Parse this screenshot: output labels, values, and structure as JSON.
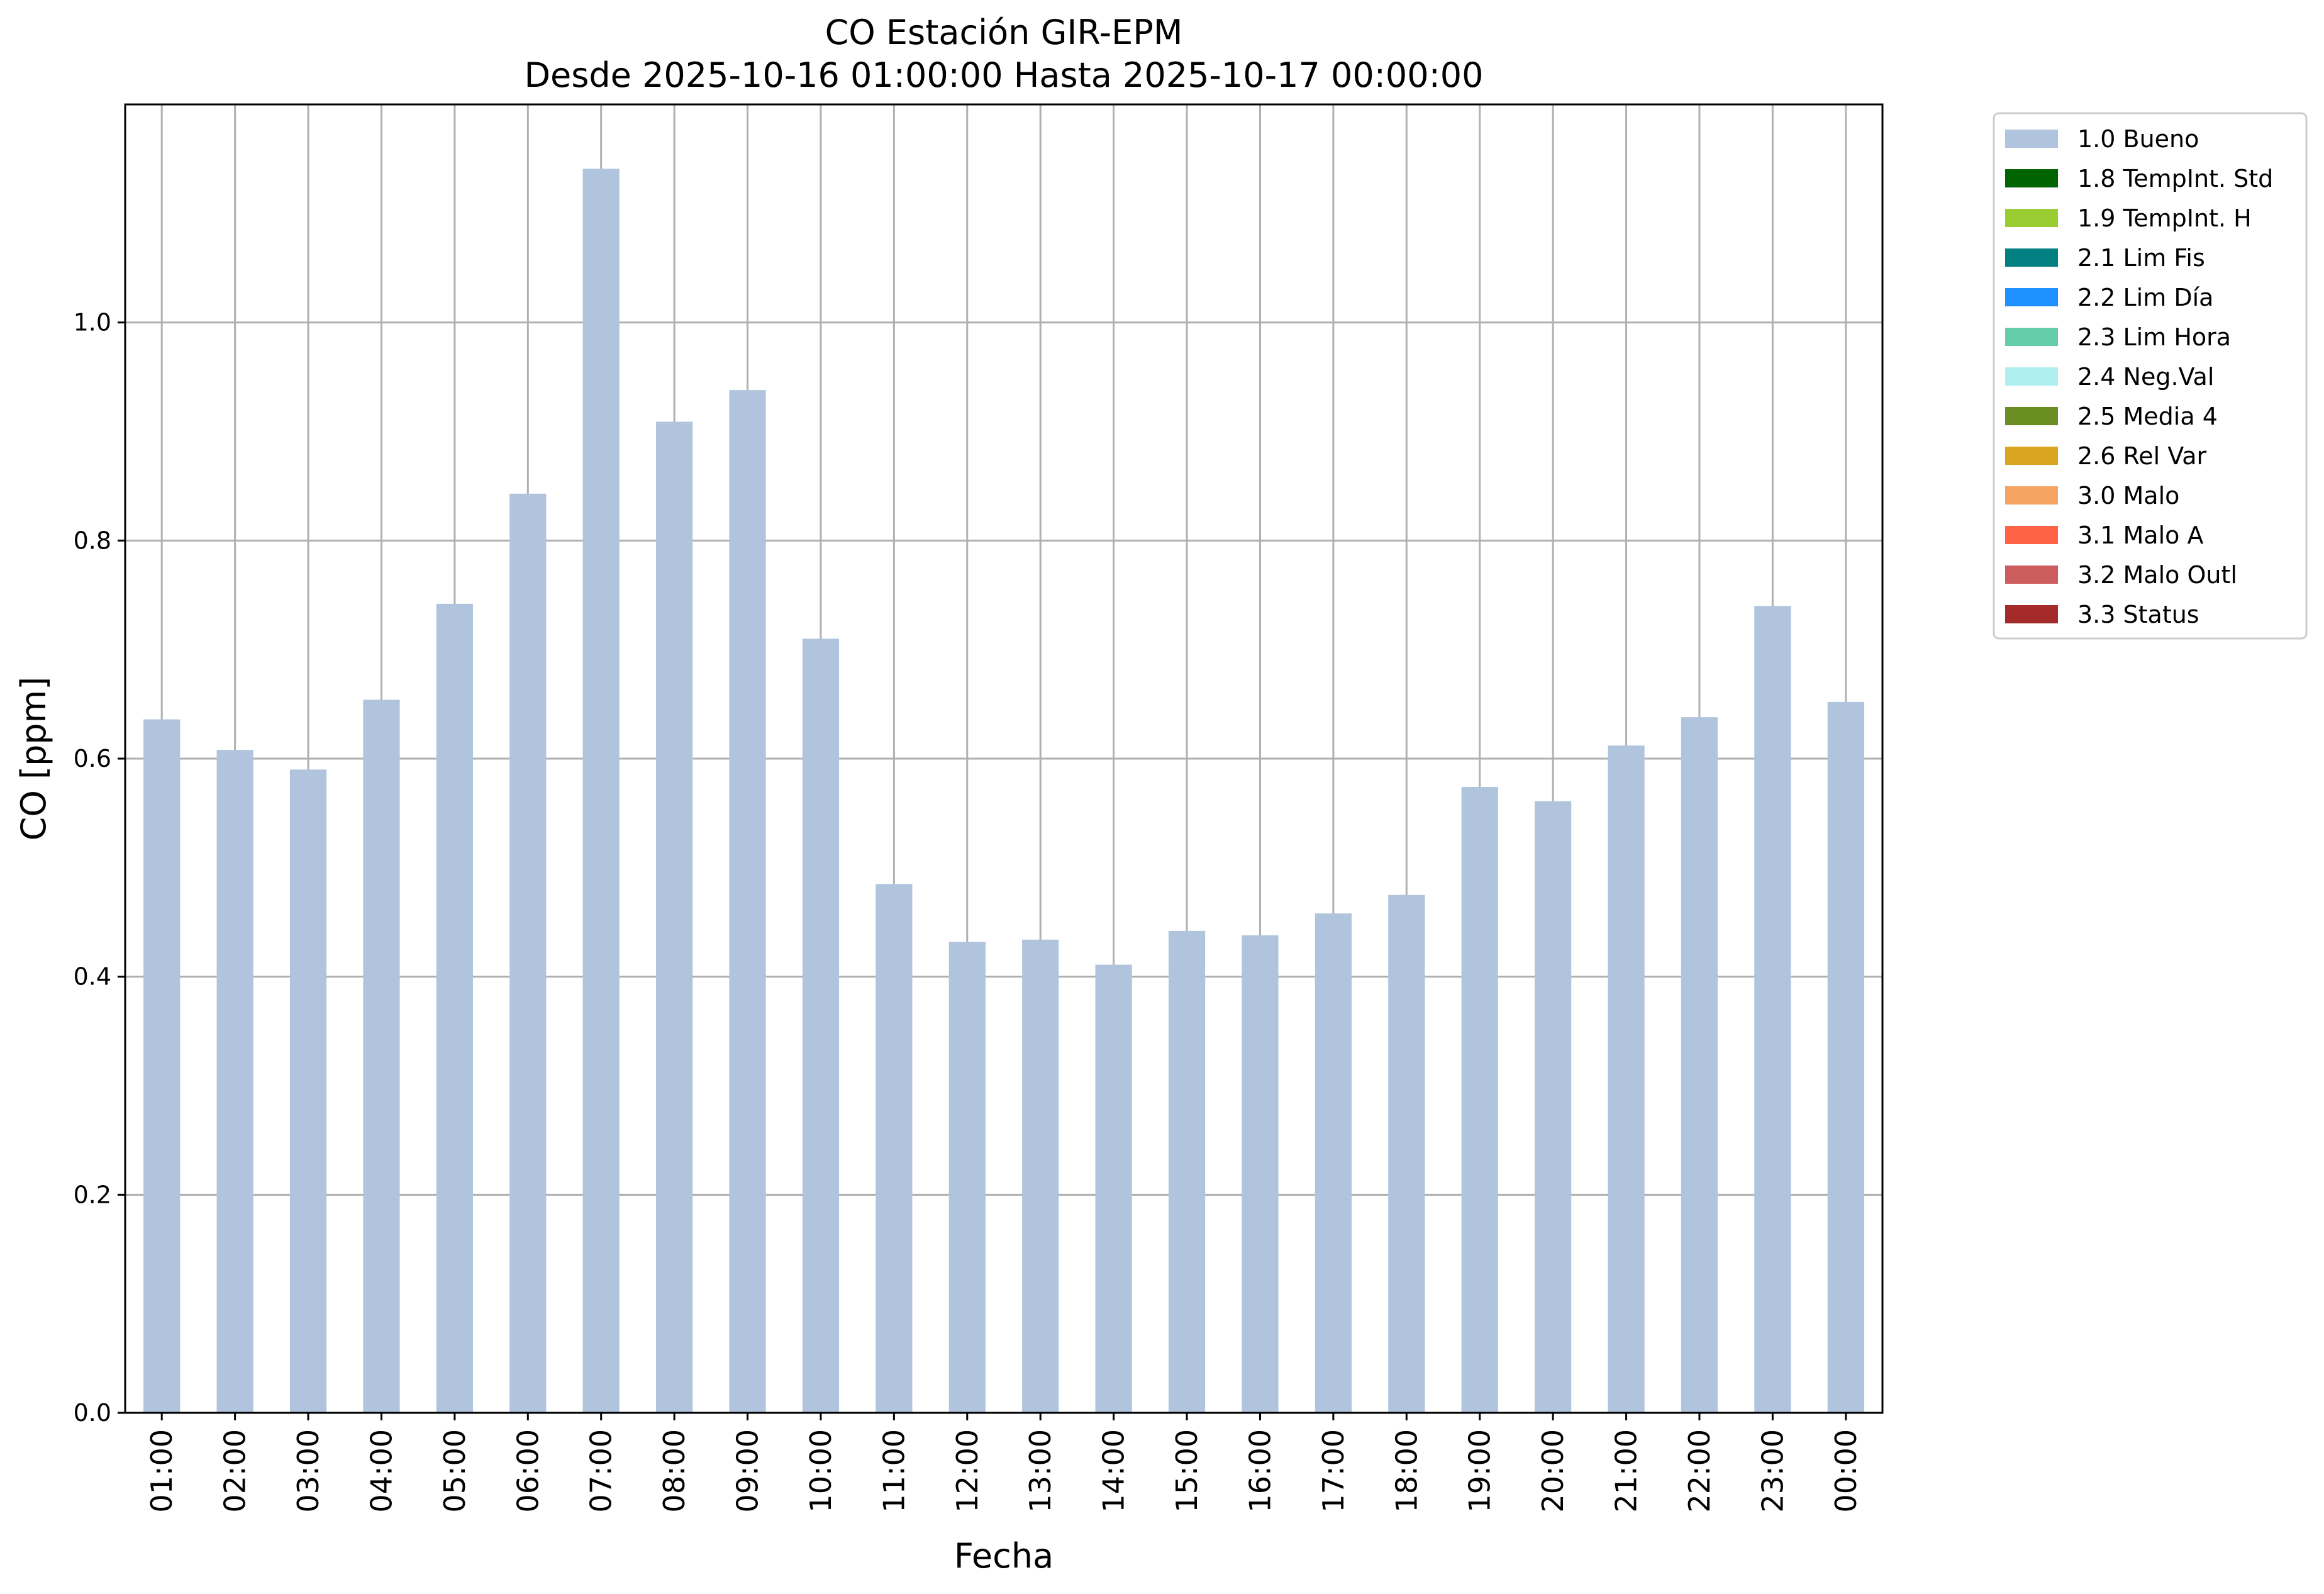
{
  "chart_data": {
    "type": "bar",
    "title_line1": "CO Estación GIR-EPM",
    "title_line2": "Desde 2025-10-16 01:00:00 Hasta 2025-10-17 00:00:00",
    "xlabel": "Fecha",
    "ylabel": "CO [ppm]",
    "ylim": [
      0,
      1.2
    ],
    "yticks": [
      "0.0",
      "0.2",
      "0.4",
      "0.6",
      "0.8",
      "1.0"
    ],
    "categories": [
      "01:00",
      "02:00",
      "03:00",
      "04:00",
      "05:00",
      "06:00",
      "07:00",
      "08:00",
      "09:00",
      "10:00",
      "11:00",
      "12:00",
      "13:00",
      "14:00",
      "15:00",
      "16:00",
      "17:00",
      "18:00",
      "19:00",
      "20:00",
      "21:00",
      "22:00",
      "23:00",
      "00:00"
    ],
    "series": [
      {
        "name": "1.0 Bueno",
        "color": "#b0c4de",
        "values": [
          0.636,
          0.608,
          0.59,
          0.654,
          0.742,
          0.843,
          1.141,
          0.909,
          0.938,
          0.71,
          0.485,
          0.432,
          0.434,
          0.411,
          0.442,
          0.438,
          0.458,
          0.475,
          0.574,
          0.561,
          0.612,
          0.638,
          0.74,
          0.652
        ]
      }
    ],
    "legend_position": "outside-top-right",
    "legend": [
      {
        "label": "1.0 Bueno",
        "color": "#b0c4de"
      },
      {
        "label": "1.8 TempInt. Std",
        "color": "#006400"
      },
      {
        "label": "1.9 TempInt. H",
        "color": "#9acd32"
      },
      {
        "label": "2.1 Lim Fis",
        "color": "#008080"
      },
      {
        "label": "2.2 Lim Día",
        "color": "#1e90ff"
      },
      {
        "label": "2.3 Lim Hora",
        "color": "#66cdaa"
      },
      {
        "label": "2.4 Neg.Val",
        "color": "#afeeee"
      },
      {
        "label": "2.5 Media 4",
        "color": "#6b8e23"
      },
      {
        "label": "2.6 Rel Var",
        "color": "#daa520"
      },
      {
        "label": "3.0 Malo",
        "color": "#f4a460"
      },
      {
        "label": "3.1 Malo A",
        "color": "#ff6347"
      },
      {
        "label": "3.2 Malo Outl",
        "color": "#cd5c5c"
      },
      {
        "label": "3.3 Status",
        "color": "#a52a2a"
      }
    ],
    "grid": true
  }
}
